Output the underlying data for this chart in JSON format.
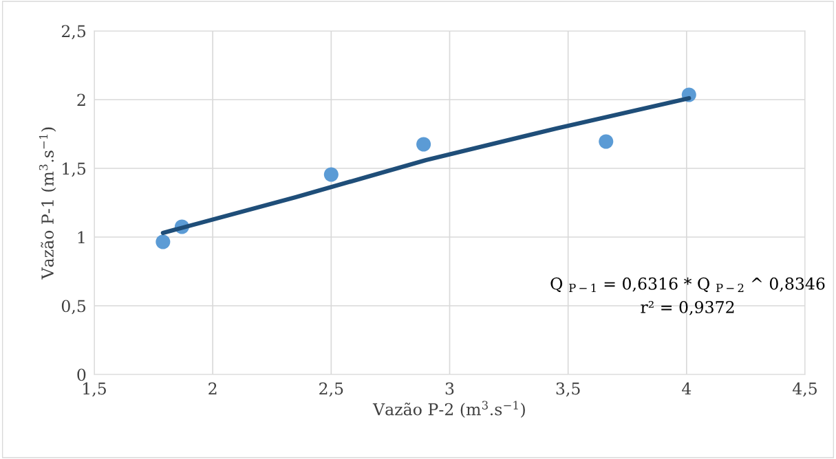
{
  "chart_data": {
    "type": "scatter",
    "xlabel": "Vazão P-2 (m$^{3}$.s$^{−1}$)",
    "ylabel": "Vazão P-1 (m$^{3}$.s$^{−1}$)",
    "series": [
      {
        "color": "#5b9bd5",
        "marker": "circle",
        "x": [
          1.79,
          1.87,
          2.5,
          2.89,
          3.66,
          4.01
        ],
        "values": [
          0.965,
          1.075,
          1.455,
          1.675,
          1.695,
          2.035
        ]
      },
      {
        "type": "line",
        "color": "#1f4e79",
        "marker": "none",
        "line_style": "solid",
        "x": [
          1.79,
          2.35,
          2.9,
          3.45,
          4.01
        ],
        "values": [
          1.03,
          1.29,
          1.56,
          1.79,
          2.01
        ]
      }
    ],
    "annotations": [
      "Q $_{P−1}$ = 0,6316 * Q $_{P−2}$ ^ 0,8346",
      "r² = 0,9372"
    ],
    "xlim": [
      1.5,
      4.5
    ],
    "xticks": [
      {
        "value": 1.5,
        "label": "1,5"
      },
      2,
      {
        "value": 2.5,
        "label": "2,5"
      },
      3,
      {
        "value": 3.5,
        "label": "3,5"
      },
      4,
      {
        "value": 4.5,
        "label": "4,5"
      }
    ],
    "ylim": [
      0,
      2.5
    ],
    "yticks": [
      0,
      {
        "value": 0.5,
        "label": "0,5"
      },
      1,
      {
        "value": 1.5,
        "label": "1,5"
      },
      2,
      {
        "value": 2.5,
        "label": "2,5"
      }
    ],
    "grid": true,
    "legend": false
  }
}
